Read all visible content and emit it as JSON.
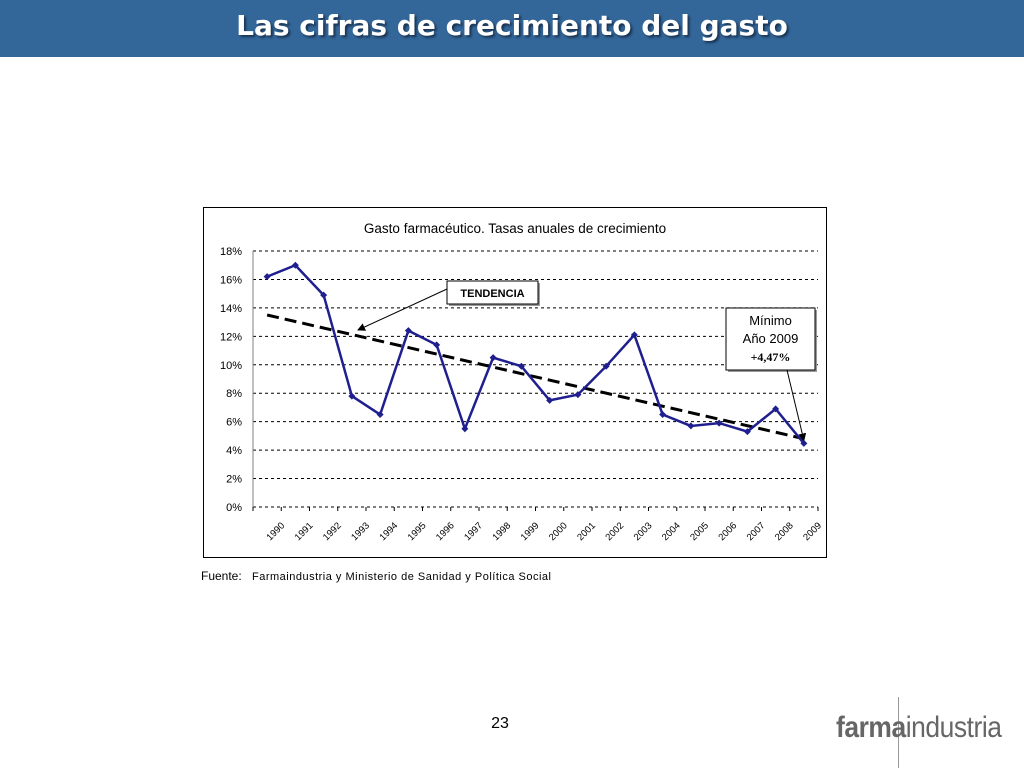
{
  "slide": {
    "title": "Las cifras de crecimiento del gasto",
    "page_number": "23",
    "source_label": "Fuente:",
    "source_text": "Farmaindustria y Ministerio de Sanidad y Política Social",
    "logo_bold": "farma",
    "logo_light": "industria"
  },
  "colors": {
    "title_bar": "#336699",
    "series": "#1f1f8f",
    "trend": "#000000"
  },
  "chart_data": {
    "type": "line",
    "title": "Gasto farmacéutico. Tasas anuales de crecimiento",
    "xlabel": "",
    "ylabel": "",
    "x": [
      "1990",
      "1991",
      "1992",
      "1993",
      "1994",
      "1995",
      "1996",
      "1997",
      "1998",
      "1999",
      "2000",
      "2001",
      "2002",
      "2003",
      "2004",
      "2005",
      "2006",
      "2007",
      "2008",
      "2009"
    ],
    "series": [
      {
        "values": [
          16.2,
          17.0,
          14.9,
          7.8,
          6.5,
          12.4,
          11.4,
          5.5,
          10.5,
          9.9,
          7.5,
          7.9,
          9.9,
          12.1,
          6.5,
          5.7,
          5.9,
          5.3,
          6.9,
          4.47
        ]
      }
    ],
    "trend": {
      "start": 13.5,
      "end": 4.8
    },
    "ylim": [
      0,
      18
    ],
    "yticks": [
      0,
      2,
      4,
      6,
      8,
      10,
      12,
      14,
      16,
      18
    ],
    "ytick_labels": [
      "0%",
      "2%",
      "4%",
      "6%",
      "8%",
      "10%",
      "12%",
      "14%",
      "16%",
      "18%"
    ],
    "grid": true,
    "annotations": [
      {
        "text": "TENDENCIA",
        "target": "trend"
      },
      {
        "lines": [
          "Mínimo",
          "Año 2009",
          "+4,47%"
        ],
        "target_year": "2009"
      }
    ]
  }
}
